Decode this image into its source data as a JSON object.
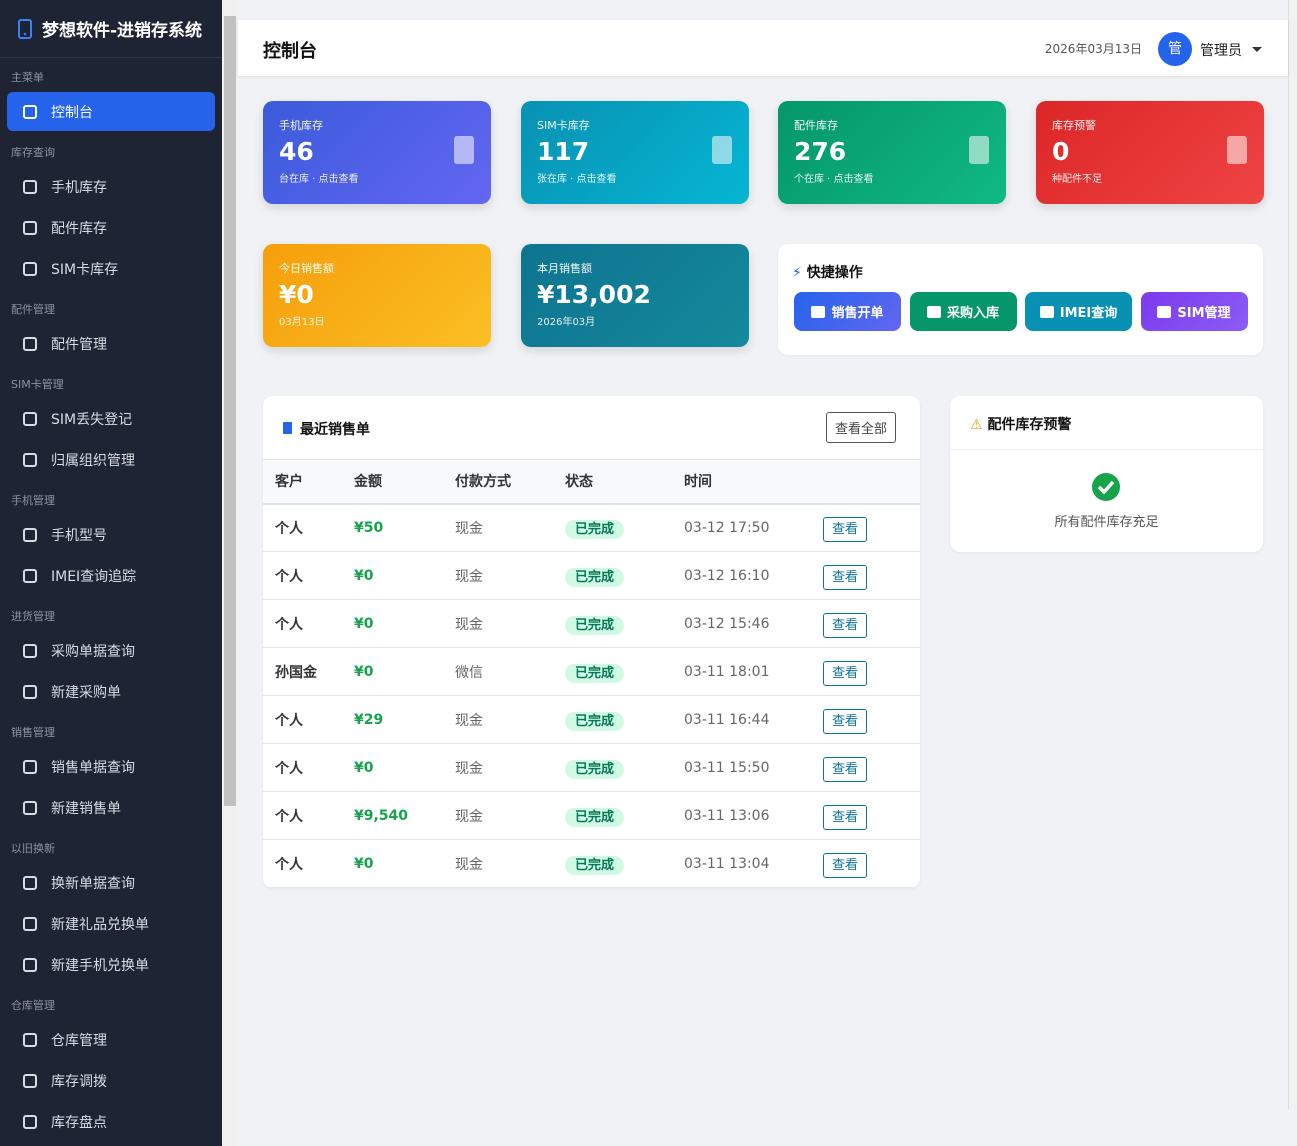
{
  "sidebar": {
    "brand": "梦想软件-进销存系统",
    "sections": [
      {
        "title": "主菜单",
        "items": [
          "控制台"
        ]
      },
      {
        "title": "库存查询",
        "items": [
          "手机库存",
          "配件库存",
          "SIM卡库存"
        ]
      },
      {
        "title": "配件管理",
        "items": [
          "配件管理"
        ]
      },
      {
        "title": "SIM卡管理",
        "items": [
          "SIM丢失登记",
          "归属组织管理"
        ]
      },
      {
        "title": "手机管理",
        "items": [
          "手机型号",
          "IMEI查询追踪"
        ]
      },
      {
        "title": "进货管理",
        "items": [
          "采购单据查询",
          "新建采购单"
        ]
      },
      {
        "title": "销售管理",
        "items": [
          "销售单据查询",
          "新建销售单"
        ]
      },
      {
        "title": "以旧换新",
        "items": [
          "换新单据查询",
          "新建礼品兑换单",
          "新建手机兑换单"
        ]
      },
      {
        "title": "仓库管理",
        "items": [
          "仓库管理",
          "库存调拨",
          "库存盘点"
        ]
      }
    ]
  },
  "header": {
    "title": "控制台",
    "date": "2026年03月13日",
    "avatar": "管",
    "user": "管理员"
  },
  "stats": [
    {
      "label": "手机库存",
      "value": "46",
      "note": "台在库 · 点击查看"
    },
    {
      "label": "SIM卡库存",
      "value": "117",
      "note": "张在库 · 点击查看"
    },
    {
      "label": "配件库存",
      "value": "276",
      "note": "个在库 · 点击查看"
    },
    {
      "label": "库存预警",
      "value": "0",
      "note": "种配件不足"
    },
    {
      "label": "今日销售额",
      "value": "¥0",
      "note": "03月13日"
    },
    {
      "label": "本月销售额",
      "value": "¥13,002",
      "note": "2026年03月"
    }
  ],
  "quick": {
    "title": "快捷操作",
    "buttons": [
      "销售开单",
      "采购入库",
      "IMEI查询",
      "SIM管理"
    ]
  },
  "orders": {
    "title": "最近销售单",
    "view_all": "查看全部",
    "columns": [
      "客户",
      "金额",
      "付款方式",
      "状态",
      "时间"
    ],
    "rows": [
      [
        "个人",
        "¥50",
        "现金",
        "已完成",
        "03-12 17:50",
        "查看"
      ],
      [
        "个人",
        "¥0",
        "现金",
        "已完成",
        "03-12 16:10",
        "查看"
      ],
      [
        "个人",
        "¥0",
        "现金",
        "已完成",
        "03-12 15:46",
        "查看"
      ],
      [
        "孙国金",
        "¥0",
        "微信",
        "已完成",
        "03-11 18:01",
        "查看"
      ],
      [
        "个人",
        "¥29",
        "现金",
        "已完成",
        "03-11 16:44",
        "查看"
      ],
      [
        "个人",
        "¥0",
        "现金",
        "已完成",
        "03-11 15:50",
        "查看"
      ],
      [
        "个人",
        "¥9,540",
        "现金",
        "已完成",
        "03-11 13:06",
        "查看"
      ],
      [
        "个人",
        "¥0",
        "现金",
        "已完成",
        "03-11 13:04",
        "查看"
      ]
    ]
  },
  "alerts": {
    "title": "配件库存预警",
    "message": "所有配件库存充足"
  }
}
